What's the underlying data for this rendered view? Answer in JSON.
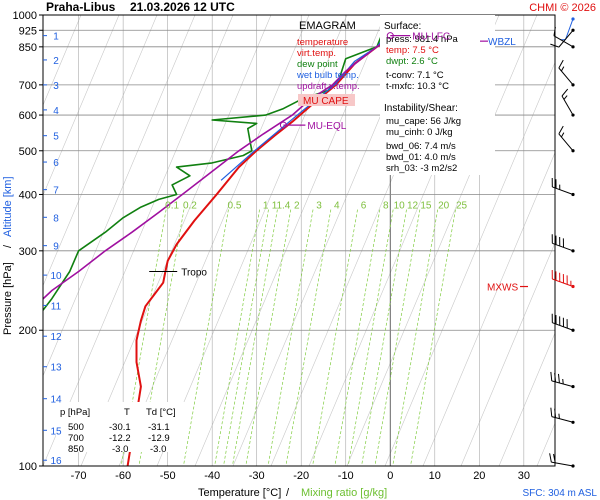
{
  "header": {
    "station": "Praha-Libus",
    "datetime": "21.03.2026 12 UTC",
    "copyright": "CHMI © 2026"
  },
  "legend": {
    "title": "EMAGRAM",
    "items": [
      {
        "label": "temperature",
        "color": "#e01010"
      },
      {
        "label": "virt.temp.",
        "color": "#e01010"
      },
      {
        "label": "dew point",
        "color": "#108010"
      },
      {
        "label": "wet bulb temp.",
        "color": "#2060e0"
      },
      {
        "label": "updraft v.temp.",
        "color": "#a010a0"
      }
    ],
    "mu_cape_badge": "MU CAPE"
  },
  "info": {
    "surface_title": "Surface:",
    "surface": [
      {
        "text": "press: 981.4 hPa",
        "color": "#000000"
      },
      {
        "text": "temp: 7.5 °C",
        "color": "#e01010"
      },
      {
        "text": "dwpt: 2.6 °C",
        "color": "#108010"
      },
      {
        "text": "t-conv: 7.1 °C",
        "color": "#000000"
      },
      {
        "text": "t-mxfc: 10.3 °C",
        "color": "#000000"
      }
    ],
    "instability_title": "Instability/Shear:",
    "instability": [
      "mu_cape: 56 J/kg",
      "mu_cinh: 0 J/kg",
      "bwd_06: 7.4 m/s",
      "bwd_01: 4.0 m/s",
      "srh_03: -3 m2/s2"
    ]
  },
  "table": {
    "headers": [
      "p [hPa]",
      "T",
      "Td [°C]"
    ],
    "rows": [
      [
        "500",
        "-30.1",
        "-31.1"
      ],
      [
        "700",
        "-12.2",
        "-12.9"
      ],
      [
        "850",
        "-3.0",
        "-3.0"
      ]
    ]
  },
  "axes": {
    "ylabel_pressure": "Pressure [hPa]",
    "ylabel_separator": "/",
    "ylabel_altitude": "Altitude [km]",
    "xlabel_temperature": "Temperature [°C]",
    "xlabel_separator": "/",
    "xlabel_mixing": "Mixing ratio [g/kg]",
    "sfc_label": "SFC: 304 m ASL"
  },
  "annotations": {
    "tropo": "Tropo",
    "mu_eql": "MU-EQL",
    "mu_lfc": "MU-LFC",
    "wbzl": "WBZL",
    "mxws": "MXWS"
  },
  "colors": {
    "temperature": "#e01010",
    "dewpoint": "#108010",
    "wetbulb": "#2060e0",
    "updraft": "#a010a0",
    "mixing": "#80cc40",
    "grid": "#aaaaaa",
    "skew": "#c8c8c8"
  },
  "chart_data": {
    "type": "line",
    "title": "Praha-Libus 21.03.2026 12 UTC",
    "xlabel": "Temperature [°C] / Mixing ratio [g/kg]",
    "ylabel": "Pressure [hPa] / Altitude [km]",
    "xlim": [
      -78,
      37
    ],
    "ylim": [
      1000,
      100
    ],
    "y_scale": "log",
    "x_ticks": [
      -70,
      -60,
      -50,
      -40,
      -30,
      -20,
      -10,
      0,
      10,
      20,
      30
    ],
    "pressure_levels": [
      100,
      200,
      300,
      400,
      500,
      600,
      700,
      850,
      925,
      1000
    ],
    "extra_pressure_grid": [
      400,
      500,
      600,
      700,
      850,
      925
    ],
    "altitude_ticks_km": [
      {
        "km": 1,
        "p": 900
      },
      {
        "km": 2,
        "p": 795
      },
      {
        "km": 3,
        "p": 700
      },
      {
        "km": 4,
        "p": 616
      },
      {
        "km": 5,
        "p": 540
      },
      {
        "km": 6,
        "p": 472
      },
      {
        "km": 7,
        "p": 410
      },
      {
        "km": 8,
        "p": 356
      },
      {
        "km": 9,
        "p": 308
      },
      {
        "km": 10,
        "p": 265
      },
      {
        "km": 11,
        "p": 227
      },
      {
        "km": 12,
        "p": 194
      },
      {
        "km": 13,
        "p": 166
      },
      {
        "km": 14,
        "p": 141
      },
      {
        "km": 15,
        "p": 120
      },
      {
        "km": 16,
        "p": 103
      }
    ],
    "mixing_ratio_labels": [
      {
        "label": "0.1",
        "x": -49
      },
      {
        "label": "0.2",
        "x": -45
      },
      {
        "label": "0.5",
        "x": -35
      },
      {
        "label": "1",
        "x": -28
      },
      {
        "label": "1",
        "x": -26
      },
      {
        "label": "1.4",
        "x": -24
      },
      {
        "label": "2",
        "x": -21
      },
      {
        "label": "3",
        "x": -16
      },
      {
        "label": "4",
        "x": -12
      },
      {
        "label": "6",
        "x": -6
      },
      {
        "label": "8",
        "x": -1
      },
      {
        "label": "10",
        "x": 2
      },
      {
        "label": "12",
        "x": 5
      },
      {
        "label": "15",
        "x": 8
      },
      {
        "label": "20",
        "x": 12
      },
      {
        "label": "25",
        "x": 16
      }
    ],
    "mixing_label_pressure": 380,
    "series": [
      {
        "name": "temperature",
        "points": [
          [
            7.5,
            981
          ],
          [
            5,
            940
          ],
          [
            2,
            905
          ],
          [
            -3,
            850
          ],
          [
            -8,
            780
          ],
          [
            -12.2,
            700
          ],
          [
            -17,
            640
          ],
          [
            -22,
            580
          ],
          [
            -26,
            540
          ],
          [
            -30.1,
            500
          ],
          [
            -34,
            460
          ],
          [
            -39,
            400
          ],
          [
            -44,
            350
          ],
          [
            -48,
            310
          ],
          [
            -50,
            285
          ],
          [
            -50.5,
            270
          ],
          [
            -51,
            255
          ],
          [
            -53,
            240
          ],
          [
            -55,
            226
          ],
          [
            -56,
            210
          ],
          [
            -57,
            190
          ],
          [
            -57,
            170
          ],
          [
            -56,
            150
          ],
          [
            -57,
            130
          ],
          [
            -58,
            115
          ],
          [
            -59,
            100
          ]
        ]
      },
      {
        "name": "dewpoint",
        "points": [
          [
            2.6,
            981
          ],
          [
            0,
            940
          ],
          [
            -2,
            900
          ],
          [
            -3,
            850
          ],
          [
            -10,
            800
          ],
          [
            -11.5,
            720
          ],
          [
            -12.9,
            700
          ],
          [
            -14,
            680
          ],
          [
            -20,
            650
          ],
          [
            -24,
            620
          ],
          [
            -28,
            600
          ],
          [
            -40,
            585
          ],
          [
            -30,
            575
          ],
          [
            -32,
            560
          ],
          [
            -31.1,
            500
          ],
          [
            -33,
            488
          ],
          [
            -40,
            470
          ],
          [
            -48,
            460
          ],
          [
            -45,
            440
          ],
          [
            -49,
            420
          ],
          [
            -48,
            400
          ],
          [
            -52,
            390
          ],
          [
            -56,
            375
          ],
          [
            -60,
            355
          ],
          [
            -64,
            330
          ],
          [
            -70,
            300
          ],
          [
            -72,
            270
          ],
          [
            -76,
            235
          ],
          [
            -79,
            215
          ]
        ]
      },
      {
        "name": "wet bulb temp.",
        "points": [
          [
            4.5,
            981
          ],
          [
            2,
            940
          ],
          [
            -1,
            900
          ],
          [
            -3,
            850
          ],
          [
            -8,
            790
          ],
          [
            -12.5,
            700
          ],
          [
            -20,
            610
          ],
          [
            -30.5,
            500
          ],
          [
            -38,
            430
          ]
        ]
      },
      {
        "name": "updraft v.temp.",
        "points": [
          [
            9,
            981
          ],
          [
            6,
            950
          ],
          [
            1,
            900
          ],
          [
            -3,
            850
          ],
          [
            -6.5,
            800
          ],
          [
            -10,
            750
          ],
          [
            -13,
            700
          ],
          [
            -18,
            650
          ],
          [
            -22,
            600
          ],
          [
            -28.5,
            545
          ],
          [
            -34,
            500
          ],
          [
            -40,
            450
          ],
          [
            -46,
            405
          ],
          [
            -52,
            365
          ],
          [
            -58,
            330
          ],
          [
            -64,
            300
          ],
          [
            -70,
            270
          ],
          [
            -76,
            245
          ],
          [
            -80,
            225
          ]
        ]
      }
    ],
    "markers": [
      {
        "name": "Tropo",
        "p": 270,
        "t": -51
      },
      {
        "name": "MU-EQL",
        "p": 570,
        "t": -24
      },
      {
        "name": "MU-LFC",
        "p": 900,
        "t": 0
      },
      {
        "name": "WBZL",
        "p": 875,
        "t": 28
      },
      {
        "name": "MXWS",
        "p": 250,
        "t": 32
      }
    ],
    "wind_barbs": [
      {
        "p": 980,
        "dir": 200,
        "speed_kt": 8,
        "color": "#2060e0"
      },
      {
        "p": 925,
        "dir": 220,
        "speed_kt": 10,
        "color": "#000000"
      },
      {
        "p": 850,
        "dir": 300,
        "speed_kt": 10,
        "color": "#000000"
      },
      {
        "p": 700,
        "dir": 320,
        "speed_kt": 15,
        "color": "#000000"
      },
      {
        "p": 600,
        "dir": 330,
        "speed_kt": 15,
        "color": "#000000"
      },
      {
        "p": 500,
        "dir": 320,
        "speed_kt": 15,
        "color": "#000000"
      },
      {
        "p": 400,
        "dir": 290,
        "speed_kt": 25,
        "color": "#000000"
      },
      {
        "p": 300,
        "dir": 290,
        "speed_kt": 40,
        "color": "#000000"
      },
      {
        "p": 250,
        "dir": 290,
        "speed_kt": 55,
        "color": "#e01010"
      },
      {
        "p": 200,
        "dir": 290,
        "speed_kt": 50,
        "color": "#000000"
      },
      {
        "p": 150,
        "dir": 285,
        "speed_kt": 35,
        "color": "#000000"
      },
      {
        "p": 125,
        "dir": 285,
        "speed_kt": 25,
        "color": "#000000"
      },
      {
        "p": 100,
        "dir": 280,
        "speed_kt": 20,
        "color": "#000000"
      }
    ]
  }
}
